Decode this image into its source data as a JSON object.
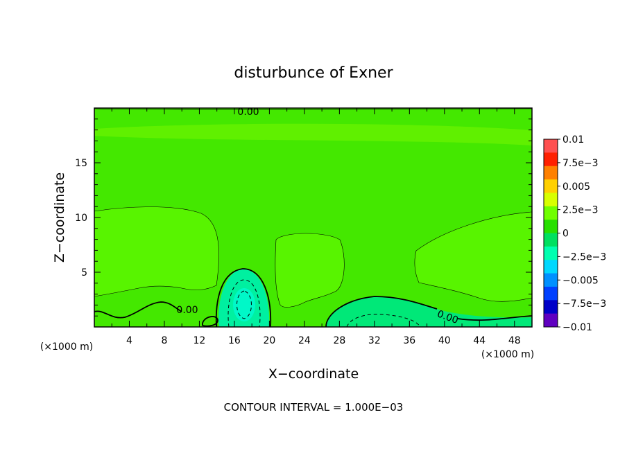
{
  "chart_data": {
    "type": "heatmap",
    "title": "disturbunce of Exner",
    "xlabel": "X−coordinate",
    "ylabel": "Z−coordinate",
    "x_unit": "(×1000 m)",
    "x_unit_right": "(×1000 m)",
    "xlim": [
      0,
      50
    ],
    "ylim": [
      0,
      20
    ],
    "x_ticks": [
      "4",
      "8",
      "12",
      "16",
      "20",
      "24",
      "28",
      "32",
      "36",
      "40",
      "44",
      "48"
    ],
    "y_ticks": [
      "5",
      "10",
      "15"
    ],
    "contour_labels": [
      "0.00",
      "0.00",
      "0.00"
    ],
    "footer": "CONTOUR INTERVAL = 1.000E−03",
    "colorbar": {
      "ticks": [
        "0.01",
        "7.5e−3",
        "0.005",
        "2.5e−3",
        "0",
        "−2.5e−3",
        "−0.005",
        "−7.5e−3",
        "−0.01"
      ],
      "colors": [
        "#ff5050",
        "#ff2000",
        "#ff8000",
        "#ffd000",
        "#d8ff00",
        "#70ff00",
        "#28e000",
        "#00e060",
        "#00ffb0",
        "#00d8ff",
        "#0090ff",
        "#0040ff",
        "#0000c8",
        "#6000c0"
      ]
    },
    "field": {
      "background_color": "#44e800",
      "regions": [
        {
          "name": "upper-band",
          "value": 0.0012,
          "color": "#60f000",
          "z_range": [
            17,
            19
          ]
        },
        {
          "name": "positive-left",
          "value": 0.001,
          "color": "#58f400",
          "x_range": [
            0,
            14
          ],
          "z_range": [
            3,
            11
          ]
        },
        {
          "name": "positive-center",
          "value": 0.001,
          "color": "#58f400",
          "x_range": [
            21,
            29
          ],
          "z_range": [
            2,
            8
          ]
        },
        {
          "name": "positive-right",
          "value": 0.001,
          "color": "#58f400",
          "x_range": [
            37,
            50
          ],
          "z_range": [
            3,
            10.5
          ]
        },
        {
          "name": "negative-center-cell",
          "value": -0.002,
          "color": "#00f0a0",
          "x_range": [
            14,
            20
          ],
          "z_range": [
            0,
            5.5
          ]
        },
        {
          "name": "negative-right-cell",
          "value": -0.001,
          "color": "#00e878",
          "x_range": [
            26,
            40
          ],
          "z_range": [
            0,
            3
          ]
        }
      ]
    }
  }
}
